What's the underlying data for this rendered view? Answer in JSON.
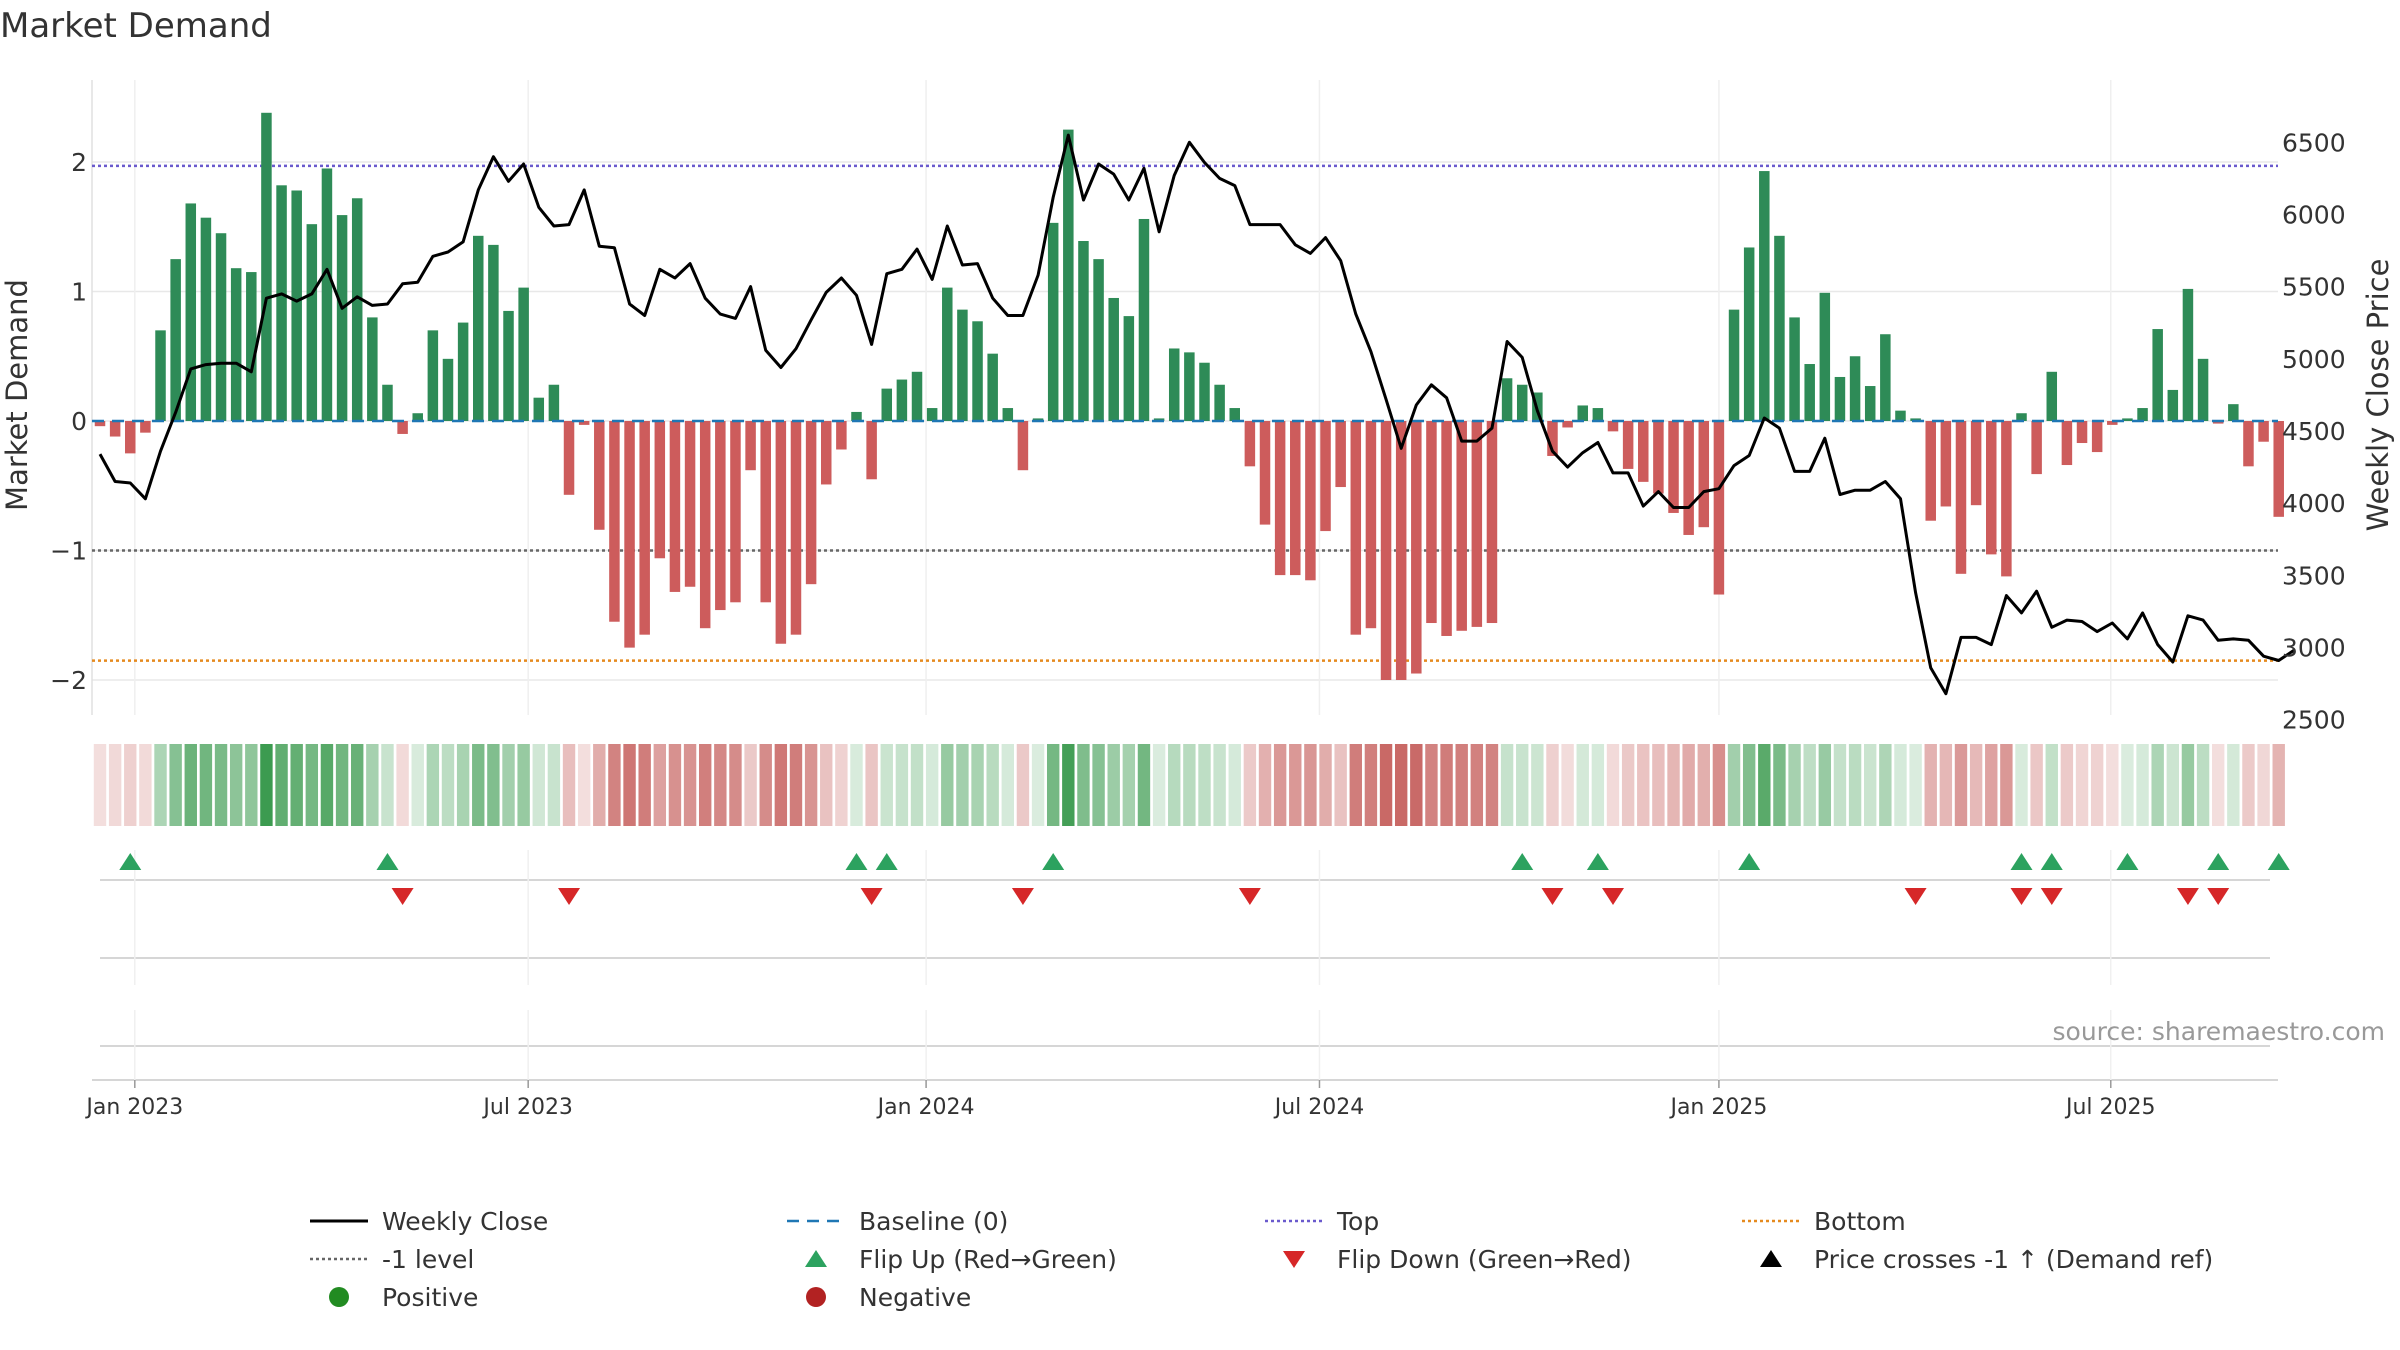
{
  "chart_data": {
    "type": "bar",
    "title": "Market Demand",
    "ylabel_left": "Market Demand",
    "ylabel_right": "Weekly Close Price",
    "xlabel": "",
    "source": "source: sharemaestro.com",
    "ylim_left": [
      -2.2,
      2.4
    ],
    "ylim_right": [
      2400,
      6700
    ],
    "yticks_left": [
      {
        "v": 2,
        "label": "2"
      },
      {
        "v": 1,
        "label": "1"
      },
      {
        "v": 0,
        "label": "0"
      },
      {
        "v": -1,
        "label": "−1"
      },
      {
        "v": -2,
        "label": "−2"
      }
    ],
    "yticks_right": [
      2500,
      3000,
      3500,
      4000,
      4500,
      5000,
      5500,
      6000,
      6500
    ],
    "x_tick_labels": [
      "Jan 2023",
      "Jul 2023",
      "Jan 2024",
      "Jul 2024",
      "Jan 2025",
      "Jul 2025"
    ],
    "x_tick_weeks": [
      2.3,
      28.3,
      54.6,
      80.6,
      107,
      132.9
    ],
    "reference_lines": {
      "top": 1.97,
      "minus_one": -1.0,
      "bottom": -1.85,
      "baseline": 0
    },
    "demand": [
      -0.04,
      -0.12,
      -0.25,
      -0.09,
      0.7,
      1.25,
      1.68,
      1.57,
      1.45,
      1.18,
      1.15,
      2.38,
      1.82,
      1.78,
      1.52,
      1.95,
      1.59,
      1.72,
      0.8,
      0.28,
      -0.1,
      0.06,
      0.7,
      0.48,
      0.76,
      1.43,
      1.36,
      0.85,
      1.03,
      0.18,
      0.28,
      -0.57,
      -0.03,
      -0.84,
      -1.55,
      -1.75,
      -1.65,
      -1.06,
      -1.32,
      -1.28,
      -1.6,
      -1.46,
      -1.4,
      -0.38,
      -1.4,
      -1.72,
      -1.65,
      -1.26,
      -0.49,
      -0.22,
      0.07,
      -0.45,
      0.25,
      0.32,
      0.38,
      0.1,
      1.03,
      0.86,
      0.77,
      0.52,
      0.1,
      -0.38,
      0.02,
      1.53,
      2.25,
      1.39,
      1.25,
      0.95,
      0.81,
      1.56,
      0.02,
      0.56,
      0.53,
      0.45,
      0.28,
      0.1,
      -0.35,
      -0.8,
      -1.19,
      -1.19,
      -1.23,
      -0.85,
      -0.51,
      -1.65,
      -1.6,
      -2.0,
      -2.0,
      -1.95,
      -1.56,
      -1.66,
      -1.62,
      -1.59,
      -1.56,
      0.33,
      0.28,
      0.22,
      -0.27,
      -0.05,
      0.12,
      0.1,
      -0.08,
      -0.37,
      -0.47,
      -0.56,
      -0.71,
      -0.88,
      -0.82,
      -1.34,
      0.86,
      1.34,
      1.93,
      1.43,
      0.8,
      0.44,
      0.99,
      0.34,
      0.5,
      0.27,
      0.67,
      0.08,
      0.02,
      -0.77,
      -0.66,
      -1.18,
      -0.65,
      -1.03,
      -1.2,
      0.06,
      -0.41,
      0.38,
      -0.34,
      -0.17,
      -0.24,
      -0.03,
      0.02,
      0.1,
      0.71,
      0.24,
      1.02,
      0.48,
      -0.02,
      0.13,
      -0.35,
      -0.16,
      -0.74
    ],
    "weekly_close": [
      4340,
      4150,
      4140,
      4030,
      4360,
      4630,
      4930,
      4960,
      4970,
      4970,
      4910,
      5420,
      5450,
      5400,
      5450,
      5620,
      5350,
      5430,
      5370,
      5380,
      5520,
      5530,
      5710,
      5740,
      5810,
      6170,
      6400,
      6230,
      6350,
      6050,
      5920,
      5930,
      6170,
      5780,
      5770,
      5380,
      5300,
      5620,
      5560,
      5660,
      5420,
      5310,
      5280,
      5500,
      5060,
      4940,
      5070,
      5270,
      5460,
      5560,
      5440,
      5100,
      5590,
      5620,
      5760,
      5550,
      5920,
      5650,
      5660,
      5420,
      5300,
      5300,
      5580,
      6120,
      6550,
      6100,
      6350,
      6280,
      6100,
      6320,
      5880,
      6270,
      6500,
      6360,
      6250,
      6200,
      5930,
      5930,
      5930,
      5790,
      5730,
      5840,
      5680,
      5310,
      5050,
      4720,
      4380,
      4680,
      4820,
      4730,
      4430,
      4430,
      4520,
      5120,
      5010,
      4640,
      4360,
      4250,
      4350,
      4420,
      4210,
      4210,
      3980,
      4080,
      3970,
      3970,
      4080,
      4100,
      4260,
      4330,
      4590,
      4520,
      4220,
      4220,
      4450,
      4060,
      4090,
      4090,
      4150,
      4030,
      3380,
      2860,
      2680,
      3070,
      3070,
      3020,
      3360,
      3240,
      3390,
      3140,
      3190,
      3180,
      3110,
      3170,
      3060,
      3240,
      3020,
      2900,
      3220,
      3190,
      3050,
      3060,
      3050,
      2940,
      2910,
      2980
    ],
    "flip_up_weeks": [
      2,
      19,
      50,
      52,
      63,
      94,
      99,
      109,
      127,
      129,
      134,
      140,
      144
    ],
    "flip_down_weeks": [
      20,
      31,
      51,
      61,
      76,
      96,
      100,
      120,
      127,
      129,
      138,
      140
    ],
    "legend": [
      {
        "label": "Weekly Close",
        "kind": "line",
        "color": "#000000",
        "dash": ""
      },
      {
        "label": "Baseline (0)",
        "kind": "line",
        "color": "#1f77b4",
        "dash": "12 8"
      },
      {
        "label": "Top",
        "kind": "line",
        "color": "#6a5acd",
        "dash": "3 3"
      },
      {
        "label": "Bottom",
        "kind": "line",
        "color": "#e58a1f",
        "dash": "3 3"
      },
      {
        "label": "-1 level",
        "kind": "line",
        "color": "#666666",
        "dash": "3 3"
      },
      {
        "label": "Flip Up (Red→Green)",
        "kind": "tri-up",
        "color": "#2ca25f",
        "dash": ""
      },
      {
        "label": "Flip Down (Green→Red)",
        "kind": "tri-down",
        "color": "#d62728",
        "dash": ""
      },
      {
        "label": "Price crosses -1 ↑ (Demand ref)",
        "kind": "tri-up",
        "color": "#000000",
        "dash": ""
      },
      {
        "label": "Positive",
        "kind": "dot",
        "color": "#228b22",
        "dash": ""
      },
      {
        "label": "Negative",
        "kind": "dot",
        "color": "#b22222",
        "dash": ""
      }
    ]
  },
  "colors": {
    "positive_bar": "#2e8b57",
    "negative_bar": "#cd5c5c",
    "heat_positive": "#3a9a4e",
    "heat_negative": "#c0504d",
    "price_line": "#000000",
    "grid": "#e8e8e8",
    "axis_text": "#333333"
  }
}
